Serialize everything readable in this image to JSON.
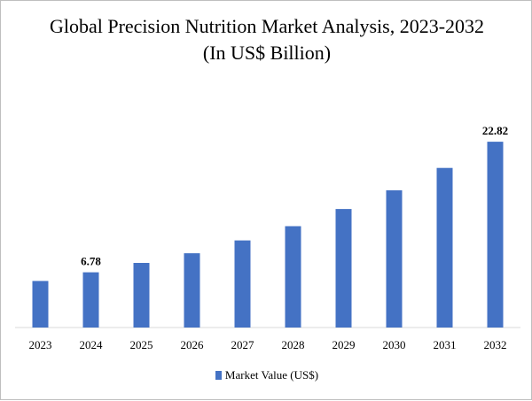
{
  "chart_data": {
    "type": "bar",
    "title": "Global Precision Nutrition Market Analysis, 2023-2032 (In US$ Billion)",
    "categories": [
      "2023",
      "2024",
      "2025",
      "2026",
      "2027",
      "2028",
      "2029",
      "2030",
      "2031",
      "2032"
    ],
    "series": [
      {
        "name": "Market Value (US$)",
        "values": [
          5.72,
          6.78,
          7.94,
          9.12,
          10.7,
          12.45,
          14.55,
          16.85,
          19.6,
          22.82
        ],
        "color": "#4472c4"
      }
    ],
    "data_labels": [
      {
        "category": "2024",
        "text": "6.78"
      },
      {
        "category": "2032",
        "text": "22.82"
      }
    ],
    "ylim": [
      0,
      25
    ],
    "grid": false,
    "legend_position": "bottom",
    "axis_color": "#d9d9d9"
  }
}
